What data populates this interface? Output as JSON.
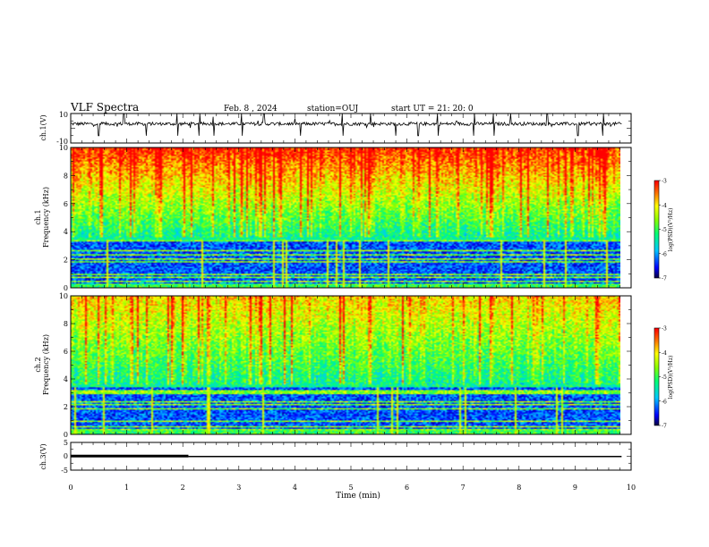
{
  "header": {
    "title": "VLF Spectra",
    "date": "Feb. 8 , 2024",
    "station": "station=OUJ",
    "start": "start UT = 21: 20: 0"
  },
  "chart_data": [
    {
      "type": "line",
      "ylabel": "ch.1(V)",
      "ylim": [
        -10,
        10
      ],
      "yticks": [
        "10",
        "-10"
      ],
      "xlim": [
        0,
        10
      ],
      "baseline": 3,
      "spike_times": [
        0.5,
        0.95,
        1.35,
        1.9,
        2.3,
        2.55,
        3.05,
        3.45,
        4.1,
        4.85,
        5.35,
        5.8,
        6.2,
        6.55,
        7.2,
        7.55,
        7.85,
        8.5,
        9.05,
        9.5
      ]
    },
    {
      "type": "heatmap",
      "ylabel": "ch.1\nFrequency (kHz)",
      "ylabel_lines": [
        "ch.1",
        "Frequency (kHz)"
      ],
      "ylim": [
        0,
        10
      ],
      "yticks": [
        "0",
        "2",
        "4",
        "6",
        "8",
        "10"
      ],
      "xlim": [
        0,
        9.83
      ],
      "colorbar": {
        "label": "log(PSD)(V²/Hz)",
        "range": [
          -7,
          -3
        ],
        "ticks": [
          "-3",
          "-4",
          "-5",
          "-6",
          "-7"
        ]
      }
    },
    {
      "type": "heatmap",
      "ylabel": "ch.2\nFrequency (kHz)",
      "ylabel_lines": [
        "ch.2",
        "Frequency (kHz)"
      ],
      "ylim": [
        0,
        10
      ],
      "yticks": [
        "0",
        "2",
        "4",
        "6",
        "8",
        "10"
      ],
      "xlim": [
        0,
        9.83
      ],
      "colorbar": {
        "label": "log(PSD)(V²/Hz)",
        "range": [
          -7,
          -3
        ],
        "ticks": [
          "-3",
          "-4",
          "-5",
          "-6",
          "-7"
        ]
      }
    },
    {
      "type": "line",
      "ylabel": "ch.3(V)",
      "ylim": [
        -5,
        5
      ],
      "yticks": [
        "5",
        "0",
        "-5"
      ],
      "xlim": [
        0,
        10
      ],
      "series": [
        {
          "x": [
            0,
            2.1
          ],
          "y": [
            0.1,
            0.1
          ]
        },
        {
          "x": [
            2.1,
            9.83
          ],
          "y": [
            -0.1,
            -0.1
          ]
        }
      ]
    }
  ],
  "xaxis": {
    "label": "Time (min)",
    "ticks": [
      "0",
      "1",
      "2",
      "3",
      "4",
      "5",
      "6",
      "7",
      "8",
      "9",
      "10"
    ]
  },
  "colors": {
    "line": "#000000",
    "cmap": [
      "#000040",
      "#0000ff",
      "#00c8ff",
      "#00ff80",
      "#80ff00",
      "#ffff00",
      "#ff8000",
      "#ff0000"
    ]
  }
}
